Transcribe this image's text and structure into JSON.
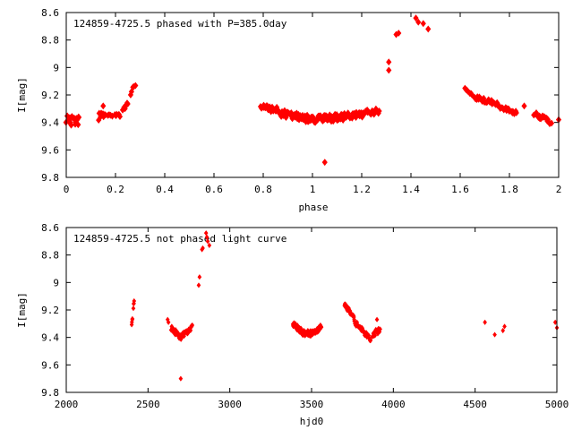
{
  "colors": {
    "points": "#ff0000",
    "axes": "#000000",
    "background": "#ffffff"
  },
  "chart_data": [
    {
      "type": "scatter",
      "title": "124859-4725.5 phased with P=385.0day",
      "xlabel": "phase",
      "ylabel": "I[mag]",
      "xlim": [
        0,
        2
      ],
      "ylim": [
        8.6,
        9.8
      ],
      "y_inverted": true,
      "grid": false,
      "x_ticks": [
        0,
        0.2,
        0.4,
        0.6,
        0.8,
        1,
        1.2,
        1.4,
        1.6,
        1.8,
        2
      ],
      "x_tick_labels": [
        "0",
        "0.2",
        "0.4",
        "0.6",
        "0.8",
        "1",
        "1.2",
        "1.4",
        "1.6",
        "1.8",
        "2"
      ],
      "y_ticks": [
        8.6,
        8.8,
        9.0,
        9.2,
        9.4,
        9.6,
        9.8
      ],
      "y_tick_labels": [
        "8.6",
        "8.8",
        "9",
        "9.2",
        "9.4",
        "9.6",
        "9.8"
      ],
      "segments": [
        {
          "x0": 0.0,
          "x1": 0.05,
          "y0": 9.38,
          "y1": 9.39,
          "n": 18,
          "jitter": 0.03
        },
        {
          "x0": 0.13,
          "x1": 0.16,
          "y0": 9.36,
          "y1": 9.34,
          "n": 8,
          "jitter": 0.03
        },
        {
          "x0": 0.17,
          "x1": 0.22,
          "y0": 9.34,
          "y1": 9.36,
          "n": 9,
          "jitter": 0.02
        },
        {
          "x0": 0.23,
          "x1": 0.25,
          "y0": 9.32,
          "y1": 9.26,
          "n": 6,
          "jitter": 0.02
        },
        {
          "x0": 0.26,
          "x1": 0.28,
          "y0": 9.18,
          "y1": 9.13,
          "n": 5,
          "jitter": 0.02
        },
        {
          "x0": 0.79,
          "x1": 0.86,
          "y0": 9.29,
          "y1": 9.31,
          "n": 20,
          "jitter": 0.02
        },
        {
          "x0": 0.86,
          "x1": 1.0,
          "y0": 9.33,
          "y1": 9.38,
          "n": 55,
          "jitter": 0.025
        },
        {
          "x0": 1.0,
          "x1": 1.12,
          "y0": 9.38,
          "y1": 9.36,
          "n": 50,
          "jitter": 0.025
        },
        {
          "x0": 1.12,
          "x1": 1.27,
          "y0": 9.36,
          "y1": 9.32,
          "n": 50,
          "jitter": 0.025
        },
        {
          "x0": 1.62,
          "x1": 1.65,
          "y0": 9.16,
          "y1": 9.2,
          "n": 8,
          "jitter": 0.015
        },
        {
          "x0": 1.66,
          "x1": 1.75,
          "y0": 9.22,
          "y1": 9.26,
          "n": 24,
          "jitter": 0.015
        },
        {
          "x0": 1.75,
          "x1": 1.83,
          "y0": 9.28,
          "y1": 9.33,
          "n": 18,
          "jitter": 0.015
        },
        {
          "x0": 1.9,
          "x1": 1.97,
          "y0": 9.33,
          "y1": 9.4,
          "n": 18,
          "jitter": 0.02
        }
      ],
      "points": [
        {
          "x": 0.15,
          "y": 9.28
        },
        {
          "x": 0.02,
          "y": 9.42
        },
        {
          "x": 0.05,
          "y": 9.36
        },
        {
          "x": 1.05,
          "y": 9.69
        },
        {
          "x": 1.31,
          "y": 9.02
        },
        {
          "x": 1.31,
          "y": 8.96
        },
        {
          "x": 1.34,
          "y": 8.76
        },
        {
          "x": 1.35,
          "y": 8.75
        },
        {
          "x": 1.42,
          "y": 8.64
        },
        {
          "x": 1.43,
          "y": 8.67
        },
        {
          "x": 1.45,
          "y": 8.68
        },
        {
          "x": 1.47,
          "y": 8.72
        },
        {
          "x": 1.86,
          "y": 9.28
        },
        {
          "x": 2.0,
          "y": 9.38
        }
      ]
    },
    {
      "type": "scatter",
      "title": "124859-4725.5 not phased light curve",
      "xlabel": "hjd0",
      "ylabel": "I[mag]",
      "xlim": [
        2000,
        5000
      ],
      "ylim": [
        8.6,
        9.8
      ],
      "y_inverted": true,
      "grid": false,
      "x_ticks": [
        2000,
        2500,
        3000,
        3500,
        4000,
        4500,
        5000
      ],
      "x_tick_labels": [
        "2000",
        "2500",
        "3000",
        "3500",
        "4000",
        "4500",
        "5000"
      ],
      "y_ticks": [
        8.6,
        8.8,
        9.0,
        9.2,
        9.4,
        9.6,
        9.8
      ],
      "y_tick_labels": [
        "8.6",
        "8.8",
        "9",
        "9.2",
        "9.4",
        "9.6",
        "9.8"
      ],
      "segments": [
        {
          "x0": 2400,
          "x1": 2405,
          "y0": 9.3,
          "y1": 9.26,
          "n": 4,
          "jitter": 0.01
        },
        {
          "x0": 2410,
          "x1": 2415,
          "y0": 9.18,
          "y1": 9.13,
          "n": 4,
          "jitter": 0.01
        },
        {
          "x0": 2640,
          "x1": 2700,
          "y0": 9.33,
          "y1": 9.4,
          "n": 28,
          "jitter": 0.02
        },
        {
          "x0": 2700,
          "x1": 2770,
          "y0": 9.4,
          "y1": 9.33,
          "n": 28,
          "jitter": 0.02
        },
        {
          "x0": 3385,
          "x1": 3450,
          "y0": 9.3,
          "y1": 9.37,
          "n": 35,
          "jitter": 0.02
        },
        {
          "x0": 3450,
          "x1": 3520,
          "y0": 9.37,
          "y1": 9.37,
          "n": 35,
          "jitter": 0.02
        },
        {
          "x0": 3520,
          "x1": 3560,
          "y0": 9.36,
          "y1": 9.32,
          "n": 18,
          "jitter": 0.02
        },
        {
          "x0": 3700,
          "x1": 3760,
          "y0": 9.16,
          "y1": 9.25,
          "n": 20,
          "jitter": 0.015
        },
        {
          "x0": 3760,
          "x1": 3860,
          "y0": 9.28,
          "y1": 9.42,
          "n": 40,
          "jitter": 0.02
        },
        {
          "x0": 3870,
          "x1": 3920,
          "y0": 9.38,
          "y1": 9.34,
          "n": 16,
          "jitter": 0.02
        }
      ],
      "points": [
        {
          "x": 2620,
          "y": 9.27
        },
        {
          "x": 2625,
          "y": 9.29
        },
        {
          "x": 2700,
          "y": 9.7
        },
        {
          "x": 2810,
          "y": 9.02
        },
        {
          "x": 2815,
          "y": 8.96
        },
        {
          "x": 2830,
          "y": 8.76
        },
        {
          "x": 2835,
          "y": 8.75
        },
        {
          "x": 2855,
          "y": 8.64
        },
        {
          "x": 2860,
          "y": 8.67
        },
        {
          "x": 2865,
          "y": 8.7
        },
        {
          "x": 2875,
          "y": 8.73
        },
        {
          "x": 3900,
          "y": 9.27
        },
        {
          "x": 4560,
          "y": 9.29
        },
        {
          "x": 4620,
          "y": 9.38
        },
        {
          "x": 4670,
          "y": 9.35
        },
        {
          "x": 4680,
          "y": 9.32
        },
        {
          "x": 4990,
          "y": 9.29
        },
        {
          "x": 5000,
          "y": 9.33
        }
      ]
    }
  ]
}
